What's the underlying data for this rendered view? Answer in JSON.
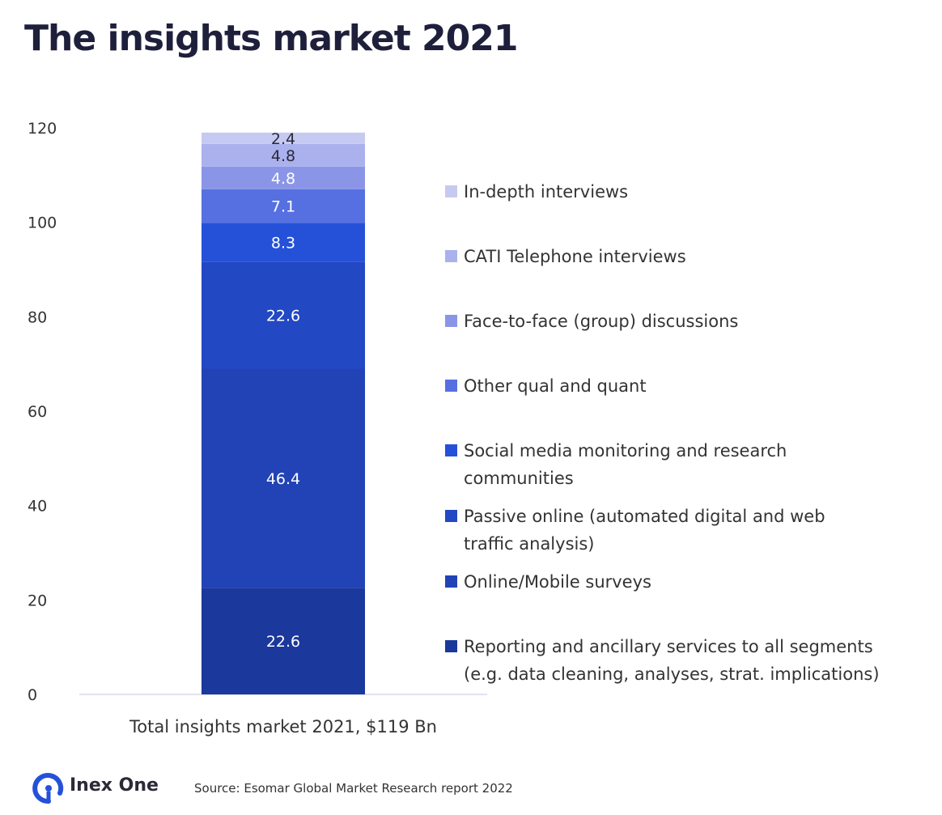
{
  "chart_data": {
    "type": "bar",
    "stacked": true,
    "title": "The insights market 2021",
    "categories": [
      "Total insights market 2021, $119 Bn"
    ],
    "ylim": [
      0,
      120
    ],
    "yticks": [
      0,
      20,
      40,
      60,
      80,
      100,
      120
    ],
    "grid": false,
    "legend_position": "right",
    "series": [
      {
        "name": "Reporting and ancillary services to all segments (e.g. data cleaning, analyses, strat. implications)",
        "legend_lines": [
          "Reporting and ancillary services to all segments",
          "(e.g. data cleaning, analyses, strat. implications)"
        ],
        "values": [
          22.6
        ],
        "color": "#1b389c",
        "label_color": "#ffffff"
      },
      {
        "name": "Online/Mobile surveys",
        "legend_lines": [
          "Online/Mobile surveys"
        ],
        "values": [
          46.4
        ],
        "color": "#2143b6",
        "label_color": "#ffffff"
      },
      {
        "name": "Passive online (automated digital and web traffic analysis)",
        "legend_lines": [
          "Passive online (automated digital and web",
          "traffic analysis)"
        ],
        "values": [
          22.6
        ],
        "color": "#2348c4",
        "label_color": "#ffffff"
      },
      {
        "name": "Social media monitoring and research communities",
        "legend_lines": [
          "Social media monitoring and research",
          "communities"
        ],
        "values": [
          8.3
        ],
        "color": "#2551d9",
        "label_color": "#ffffff"
      },
      {
        "name": "Other qual and quant",
        "legend_lines": [
          "Other qual and quant"
        ],
        "values": [
          7.1
        ],
        "color": "#5670e1",
        "label_color": "#ffffff"
      },
      {
        "name": "Face-to-face (group) discussions",
        "legend_lines": [
          "Face-to-face (group) discussions"
        ],
        "values": [
          4.8
        ],
        "color": "#8b95e7",
        "label_color": "#ffffff"
      },
      {
        "name": "CATI Telephone interviews",
        "legend_lines": [
          "CATI Telephone interviews"
        ],
        "values": [
          4.8
        ],
        "color": "#aab1ed",
        "label_color": "#2a2a3a"
      },
      {
        "name": "In-depth interviews",
        "legend_lines": [
          "In-depth interviews"
        ],
        "values": [
          2.4
        ],
        "color": "#c6caf2",
        "label_color": "#2a2a3a"
      }
    ]
  },
  "footer": {
    "brand": "Inex One",
    "source": "Source: Esomar Global Market Research report 2022",
    "brand_color": "#2551d9"
  }
}
